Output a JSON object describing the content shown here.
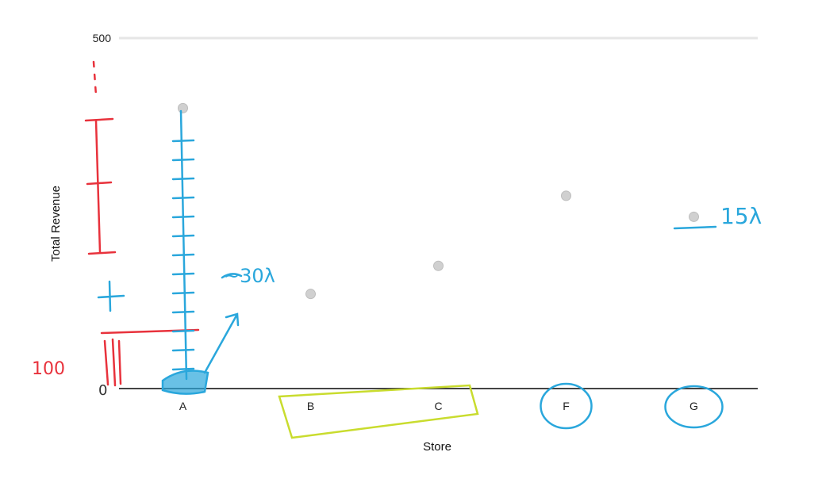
{
  "chart_data": {
    "type": "scatter",
    "categories": [
      "A",
      "B",
      "C",
      "F",
      "G"
    ],
    "values": [
      400,
      135,
      175,
      275,
      245
    ],
    "xlabel": "Store",
    "ylabel": "Total Revenue",
    "ylim": [
      0,
      500
    ],
    "y_tick_labels": [
      "500"
    ],
    "grid": true,
    "legend": "none",
    "point_color": "#d0d0d0",
    "grid_color": "#e6e6e6",
    "axis_color": "#444444"
  },
  "annotations": {
    "left_tick_label": "100",
    "zero_label": "0",
    "label_a_gap": "~30λ",
    "label_g_gap": "15λ",
    "red_ink": "#e8323c",
    "blue_ink": "#2aa7dc",
    "green_ink": "#c9dc2e"
  }
}
